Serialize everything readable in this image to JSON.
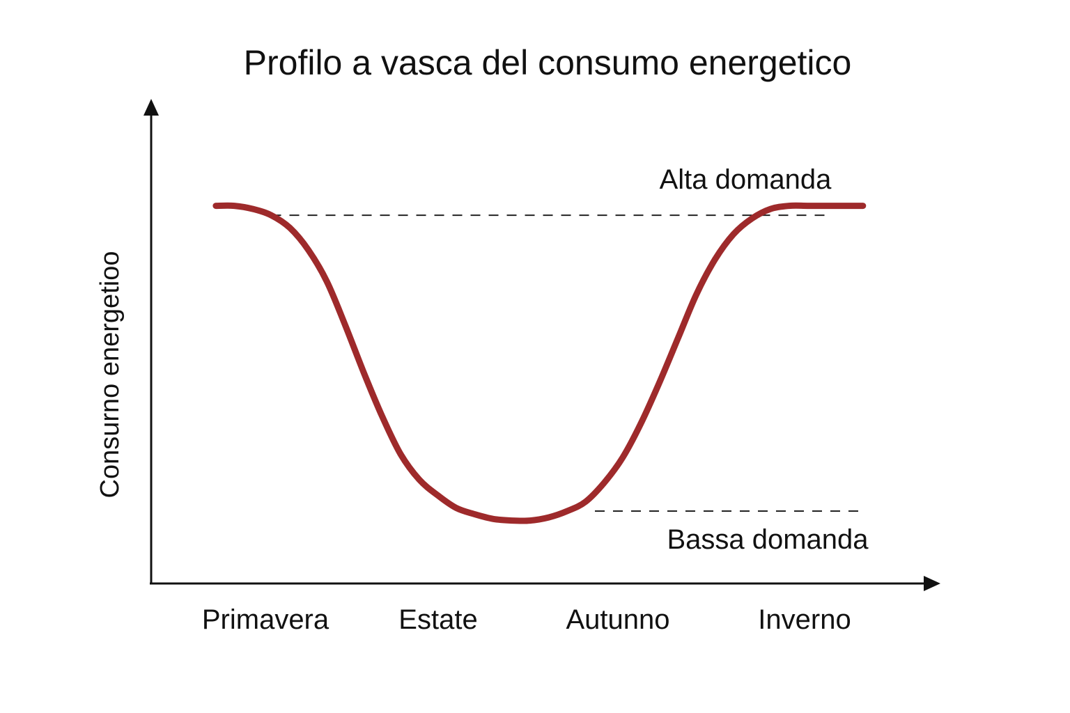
{
  "chart_data": {
    "type": "line",
    "title": "Profilo a vasca del consumo energetico",
    "xlabel": "",
    "ylabel": "Consurno energetioo",
    "categories": [
      "Primavera",
      "Estate",
      "Autunno",
      "Inverno"
    ],
    "y_ticks_shown": false,
    "grid": false,
    "series": [
      {
        "color": "#9e2a2b",
        "x": [
          0.0,
          0.1,
          0.2,
          0.3,
          0.4,
          0.5,
          0.6,
          0.7,
          0.8,
          0.9,
          1.0,
          1.1,
          1.2,
          1.3,
          1.4,
          1.5,
          1.6,
          1.7,
          1.8,
          1.9,
          2.0,
          2.1,
          2.2,
          2.3,
          2.4,
          2.5,
          2.6,
          2.7,
          2.8,
          2.9,
          3.0,
          3.1,
          3.2,
          3.3,
          3.4,
          3.5
        ],
        "y": [
          1.0,
          1.0,
          0.99,
          0.97,
          0.93,
          0.86,
          0.76,
          0.62,
          0.47,
          0.33,
          0.21,
          0.13,
          0.08,
          0.04,
          0.02,
          0.005,
          0.0,
          0.0,
          0.01,
          0.03,
          0.06,
          0.12,
          0.2,
          0.31,
          0.44,
          0.58,
          0.72,
          0.83,
          0.91,
          0.96,
          0.99,
          1.0,
          1.0,
          1.0,
          1.0,
          1.0
        ]
      }
    ],
    "reference_lines": [
      {
        "label": "Alta domanda",
        "y": 0.97,
        "x_range": [
          0.3,
          3.3
        ],
        "style": "dashed"
      },
      {
        "label": "Bassa domanda",
        "y": 0.03,
        "x_range": [
          2.05,
          3.5
        ],
        "style": "dashed"
      }
    ],
    "ylim": [
      -0.2,
      1.3
    ],
    "xlim": [
      -0.35,
      3.9
    ]
  }
}
